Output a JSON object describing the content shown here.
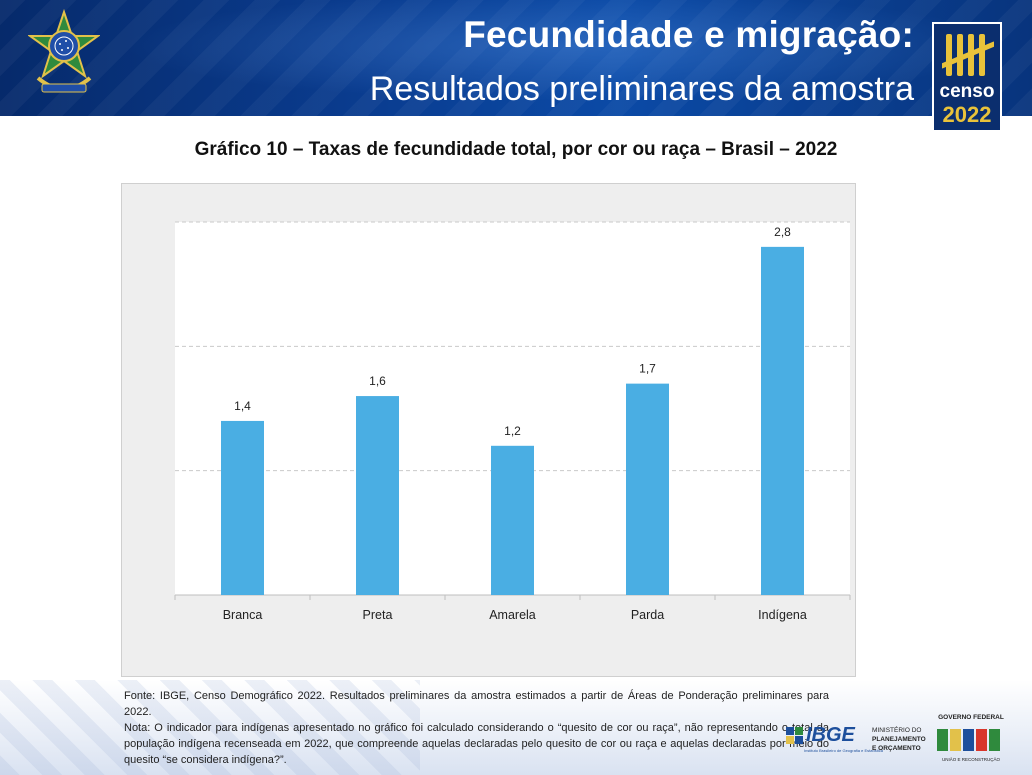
{
  "header": {
    "title": "Fecundidade e migração:",
    "subtitle": "Resultados preliminares da amostra",
    "censo_logo": {
      "word": "censo",
      "year": "2022"
    }
  },
  "chart_title": "Gráfico 10 – Taxas de fecundidade total, por cor ou raça – Brasil – 2022",
  "chart_data": {
    "type": "bar",
    "title": "Gráfico 10 – Taxas de fecundidade total, por cor ou raça – Brasil – 2022",
    "categories": [
      "Branca",
      "Preta",
      "Amarela",
      "Parda",
      "Indígena"
    ],
    "values": [
      1.4,
      1.6,
      1.2,
      1.7,
      2.8
    ],
    "value_labels": [
      "1,4",
      "1,6",
      "1,2",
      "1,7",
      "2,8"
    ],
    "xlabel": "",
    "ylabel": "",
    "ylim": [
      0,
      3.0
    ],
    "gridlines": [
      1.0,
      2.0,
      3.0
    ],
    "grid": true,
    "bar_color": "#4aaee3"
  },
  "footer": {
    "source": "Fonte: IBGE, Censo Demográfico 2022. Resultados preliminares da amostra estimados a partir de Áreas de Ponderação preliminares para 2022.",
    "note": "Nota: O indicador para indígenas apresentado no gráfico foi calculado considerando o “quesito de cor ou raça”, não representando o total da população indígena recenseada em 2022, que compreende aquelas declaradas pelo quesito de cor ou raça e aquelas declaradas por meio do quesito “se considera indígena?”.",
    "ibge": {
      "word": "IBGE",
      "subtitle": "Instituto Brasileiro de Geografia e Estatística"
    },
    "ministerio": {
      "line1": "MINISTÉRIO DO",
      "line2": "PLANEJAMENTO",
      "line3": "E ORÇAMENTO"
    },
    "governo": {
      "top": "GOVERNO FEDERAL",
      "bottom": "UNIÃO E RECONSTRUÇÃO"
    }
  },
  "colors": {
    "header_blue": "#0a3c8f",
    "bar": "#4aaee3",
    "censo_gold": "#e9c23a"
  }
}
